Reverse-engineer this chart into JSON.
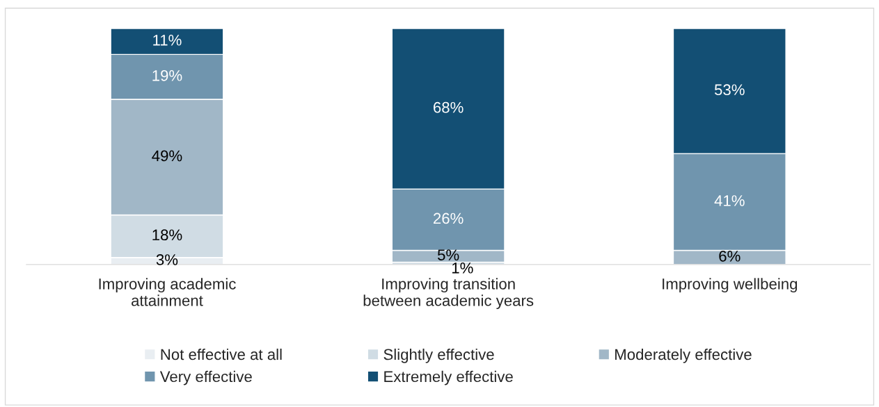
{
  "chart_data": {
    "type": "bar",
    "stacked": true,
    "legend": "bottom",
    "categories": [
      "Improving academic\nattainment",
      "Improving transition\nbetween academic years",
      "Improving wellbeing"
    ],
    "series": [
      {
        "name": "Not effective at all",
        "color": "#e9eef2",
        "values": [
          3,
          null,
          null
        ],
        "value_labels": [
          "3%",
          null,
          null
        ]
      },
      {
        "name": "Slightly effective",
        "color": "#d0dce4",
        "values": [
          18,
          1,
          null
        ],
        "value_labels": [
          "18%",
          "1%",
          null
        ]
      },
      {
        "name": "Moderately effective",
        "color": "#a1b7c7",
        "values": [
          49,
          5,
          6
        ],
        "value_labels": [
          "49%",
          "5%",
          "6%"
        ]
      },
      {
        "name": "Very effective",
        "color": "#7095ae",
        "values": [
          19,
          26,
          41
        ],
        "value_labels": [
          "19%",
          "26%",
          "41%"
        ]
      },
      {
        "name": "Extremely effective",
        "color": "#134f74",
        "values": [
          11,
          68,
          53
        ],
        "value_labels": [
          "11%",
          "68%",
          "53%"
        ]
      }
    ]
  }
}
